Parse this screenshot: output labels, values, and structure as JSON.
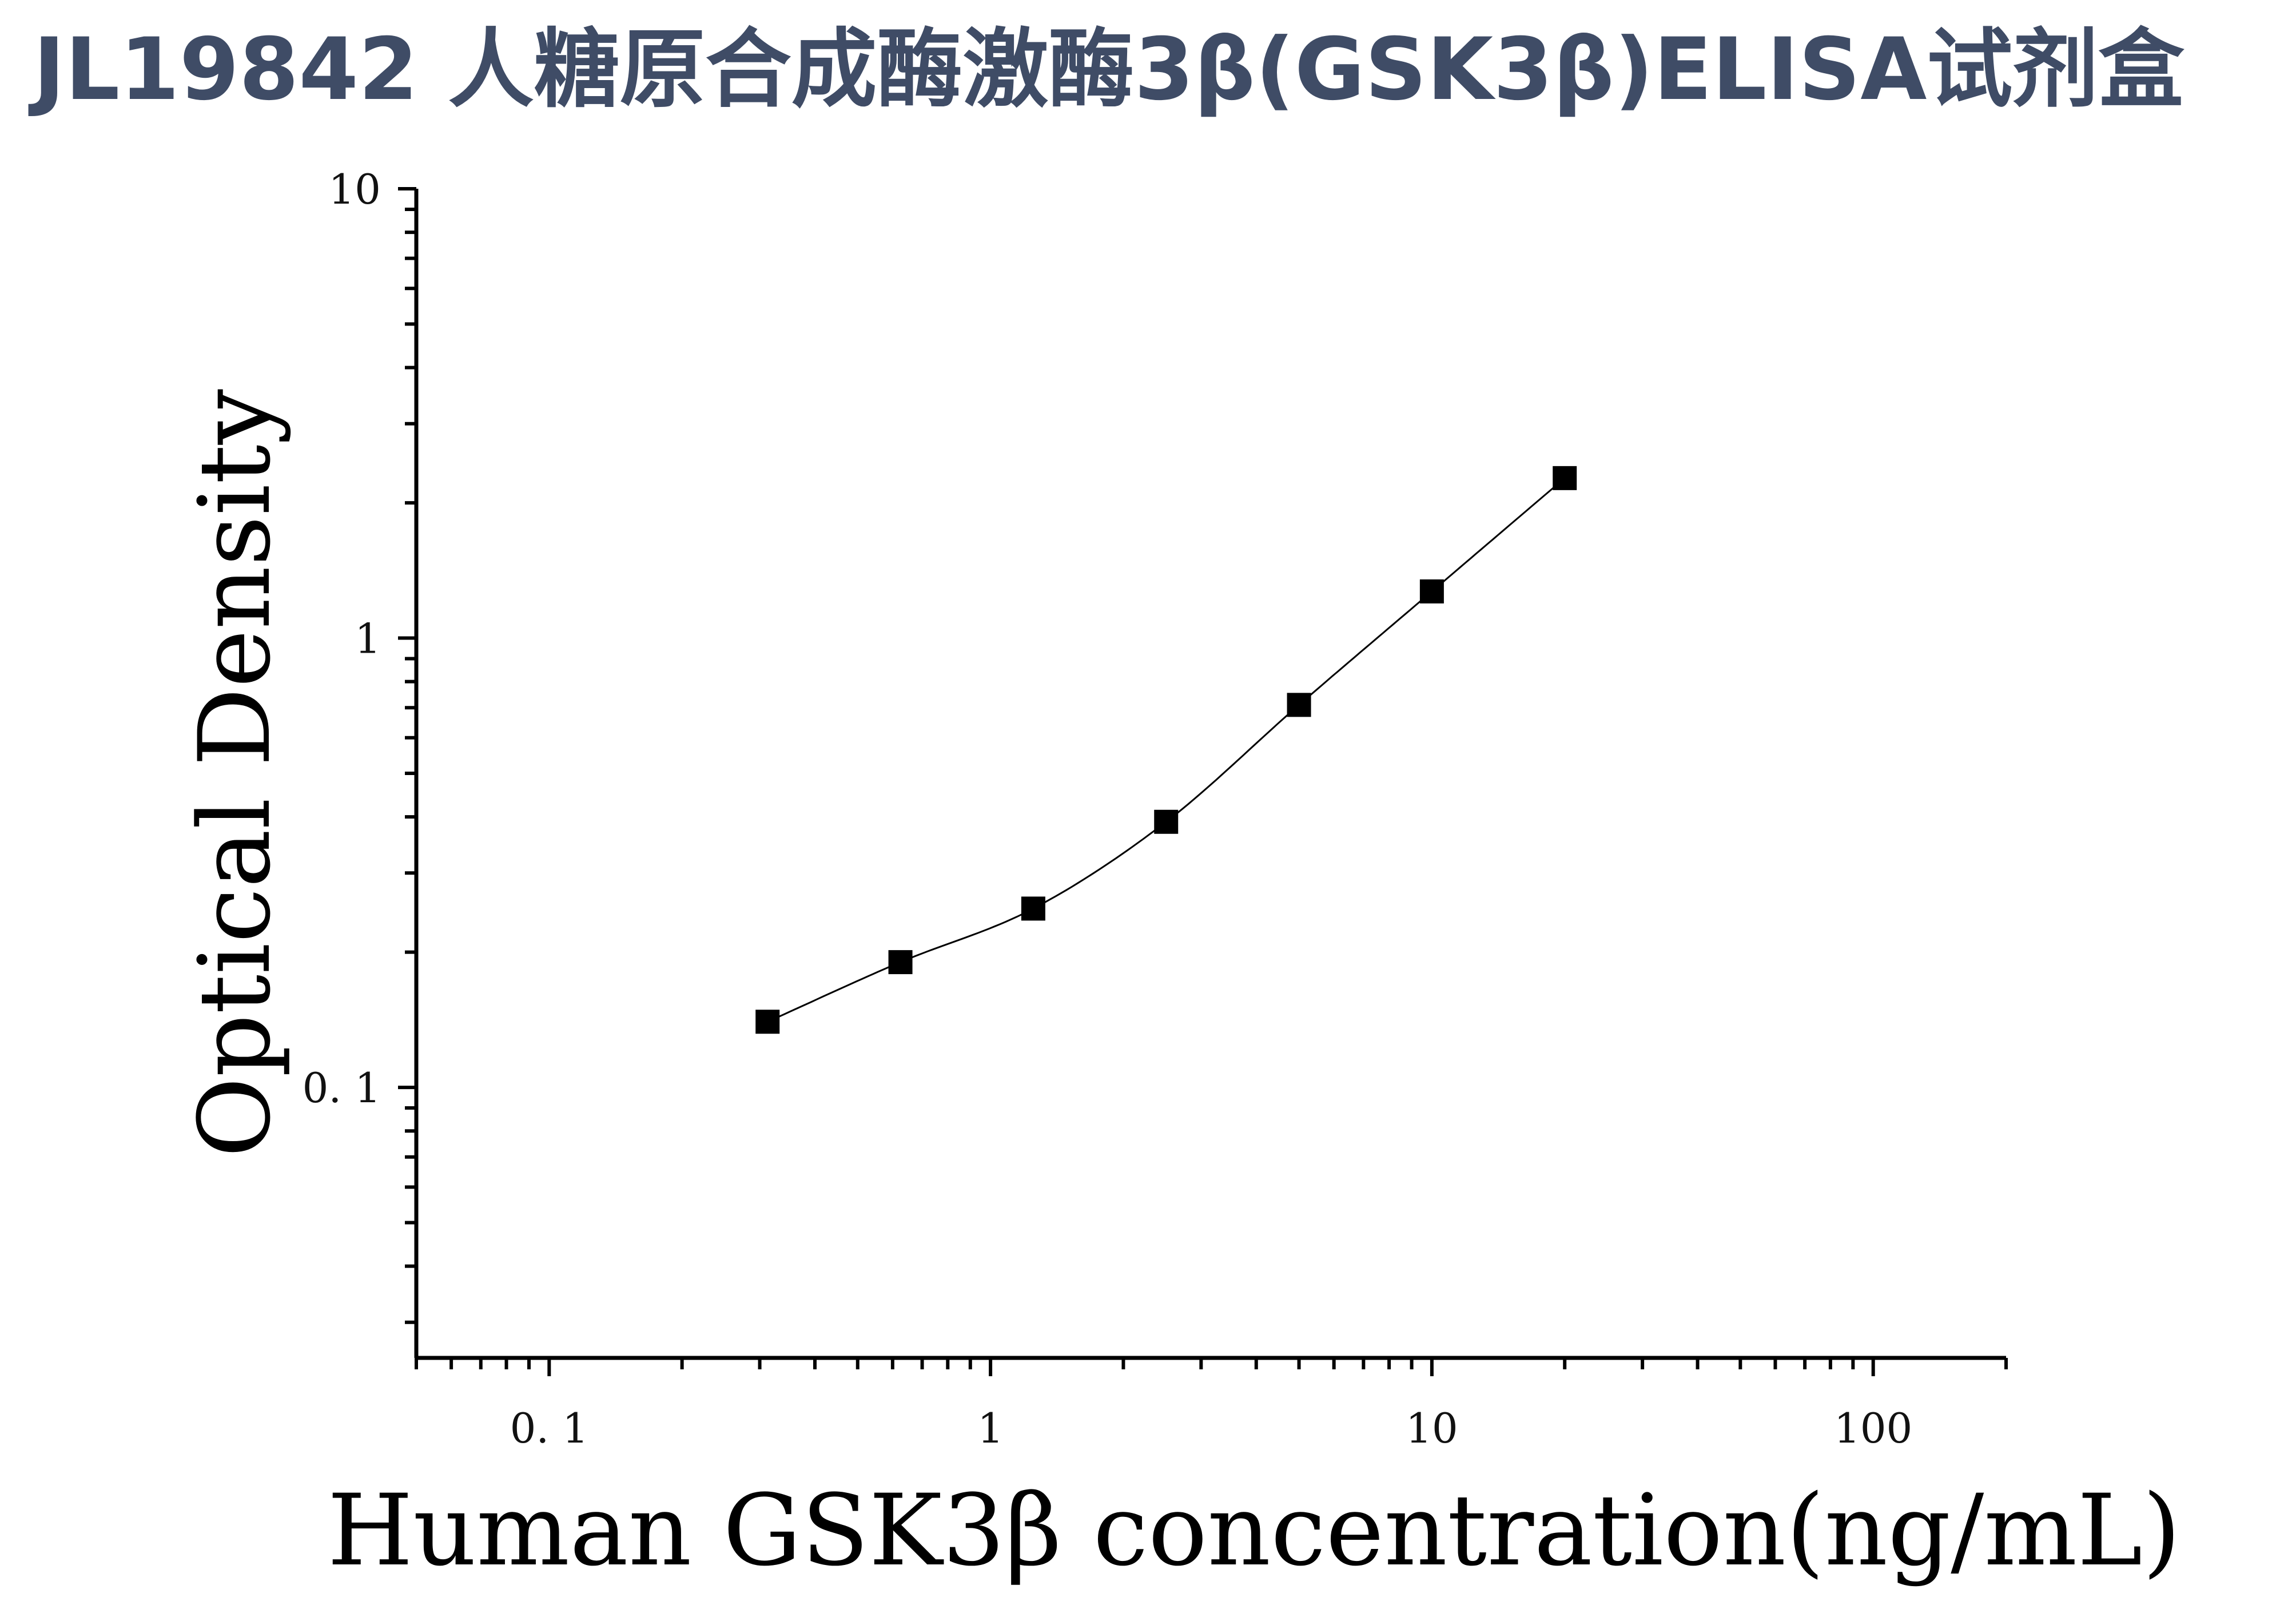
{
  "title": "JL19842 人糖原合成酶激酶3β(GSK3β)ELISA试剂盒",
  "chart_data": {
    "type": "scatter",
    "xlabel": "Human GSK3β concentration(ng/mL)",
    "ylabel": "Optical Density",
    "xscale": "log",
    "yscale": "log",
    "xlim": [
      0.05,
      200
    ],
    "ylim": [
      0.025,
      10
    ],
    "xticks": [
      0.1,
      1,
      10,
      100
    ],
    "xtick_labels": [
      "0. 1",
      "1",
      "10",
      "100"
    ],
    "yticks": [
      0.1,
      1,
      10
    ],
    "ytick_labels": [
      "0. 1",
      "1",
      "10"
    ],
    "grid": false,
    "marker": "square",
    "marker_color": "#000000",
    "curve": "fitted",
    "points": [
      {
        "x": 0.3125,
        "y": 0.14
      },
      {
        "x": 0.625,
        "y": 0.19
      },
      {
        "x": 1.25,
        "y": 0.25
      },
      {
        "x": 2.5,
        "y": 0.39
      },
      {
        "x": 5,
        "y": 0.71
      },
      {
        "x": 10,
        "y": 1.27
      },
      {
        "x": 20,
        "y": 2.27
      }
    ]
  }
}
